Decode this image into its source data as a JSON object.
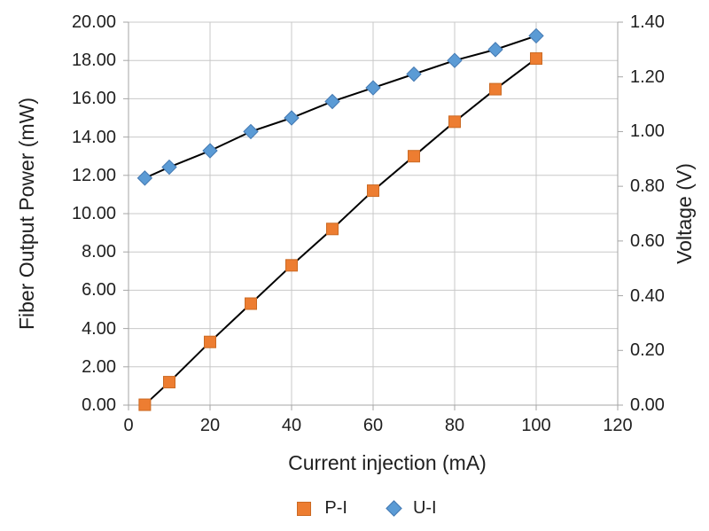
{
  "chart_data": {
    "type": "line",
    "title": "",
    "xlabel": "Current injection (mA)",
    "ylabel_left": "Fiber Output Power (mW)",
    "ylabel_right": "Voltage (V)",
    "x": [
      4,
      10,
      20,
      30,
      40,
      50,
      60,
      70,
      80,
      90,
      100
    ],
    "series": [
      {
        "name": "P-I",
        "axis": "left",
        "marker": "square",
        "marker_fill": "#ED7D31",
        "marker_edge": "#CB6A24",
        "line_color": "#000000",
        "values": [
          0.02,
          1.2,
          3.3,
          5.3,
          7.3,
          9.2,
          11.2,
          13.0,
          14.8,
          16.5,
          18.1
        ]
      },
      {
        "name": "U-I",
        "axis": "right",
        "marker": "diamond",
        "marker_fill": "#5B9BD5",
        "marker_edge": "#4479B2",
        "line_color": "#000000",
        "values": [
          0.83,
          0.87,
          0.93,
          1.0,
          1.05,
          1.11,
          1.16,
          1.21,
          1.26,
          1.3,
          1.35
        ]
      }
    ],
    "x_axis": {
      "min": 0,
      "max": 120,
      "step": 20,
      "tick_labels": [
        "0",
        "20",
        "40",
        "60",
        "80",
        "100",
        "120"
      ]
    },
    "y_axis_left": {
      "min": 0,
      "max": 20,
      "step": 2,
      "tick_labels": [
        "0.00",
        "2.00",
        "4.00",
        "6.00",
        "8.00",
        "10.00",
        "12.00",
        "14.00",
        "16.00",
        "18.00",
        "20.00"
      ]
    },
    "y_axis_right": {
      "min": 0,
      "max": 1.4,
      "step": 0.2,
      "tick_labels": [
        "0.00",
        "0.20",
        "0.40",
        "0.60",
        "0.80",
        "1.00",
        "1.20",
        "1.40"
      ]
    },
    "grid": true,
    "legend_position": "bottom",
    "colors": {
      "gridline": "#C8C8C8",
      "axis_line": "#A6A6A6",
      "text": "#1F1F1F",
      "background": "#FFFFFF"
    }
  }
}
